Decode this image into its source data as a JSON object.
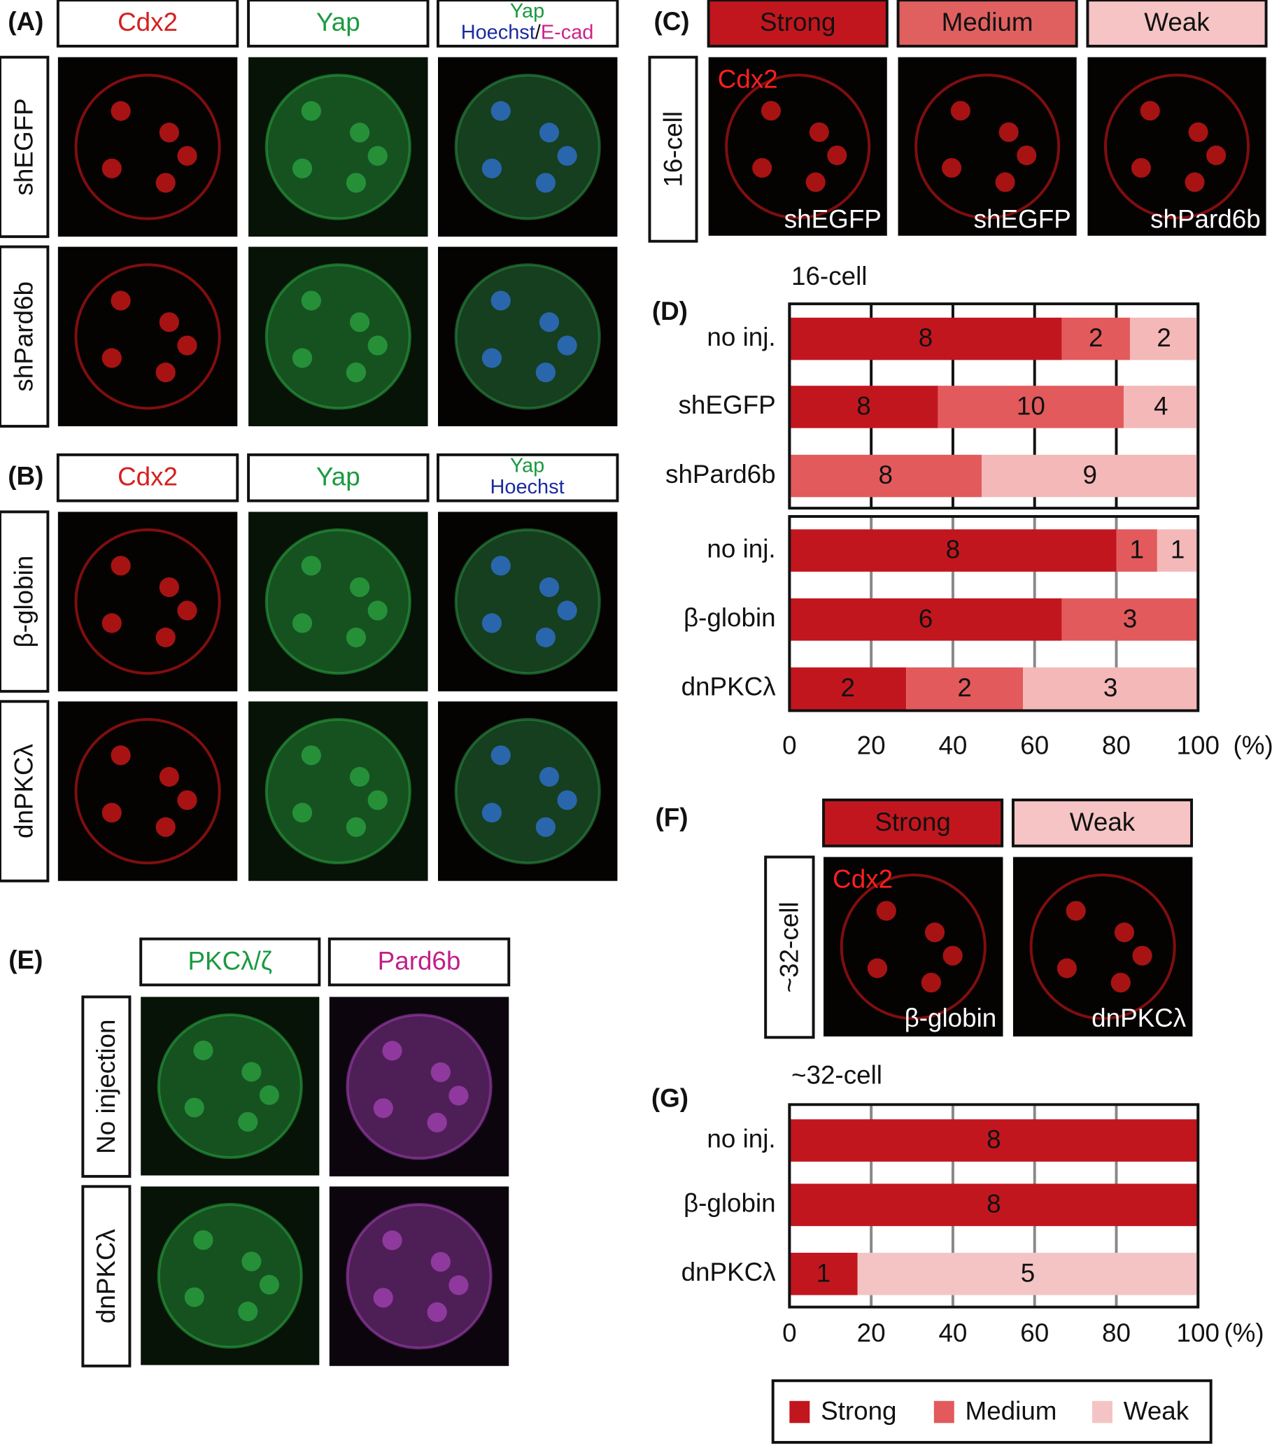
{
  "panels": {
    "A": {
      "label": "(A)",
      "columns": [
        "Cdx2",
        "Yap"
      ],
      "merge_header": [
        "Yap",
        "Hoechst",
        "/",
        "E-cad"
      ],
      "rows": [
        "shEGFP",
        "shPard6b"
      ]
    },
    "B": {
      "label": "(B)",
      "columns": [
        "Cdx2",
        "Yap"
      ],
      "merge_header": [
        "Yap",
        "Hoechst"
      ],
      "rows": [
        "β-globin",
        "dnPKCλ"
      ]
    },
    "C": {
      "label": "(C)",
      "headers": [
        "Strong",
        "Medium",
        "Weak"
      ],
      "row": "16-cell",
      "overlay": "Cdx2",
      "captions": [
        "shEGFP",
        "shEGFP",
        "shPard6b"
      ]
    },
    "E": {
      "label": "(E)",
      "columns": [
        "PKCλ/ζ",
        "Pard6b"
      ],
      "rows": [
        "No injection",
        "dnPKCλ"
      ]
    },
    "F": {
      "label": "(F)",
      "headers": [
        "Strong",
        "Weak"
      ],
      "row": "~32-cell",
      "overlay": "Cdx2",
      "captions": [
        "β-globin",
        "dnPKCλ"
      ]
    }
  },
  "chart_data": [
    {
      "type": "bar",
      "orientation": "horizontal",
      "stacked": "percent",
      "panel_label": "(D)",
      "title": "16-cell",
      "categories": [
        "no inj.",
        "shEGFP",
        "shPard6b",
        "no inj.",
        "β-globin",
        "dnPKCλ"
      ],
      "series": [
        {
          "name": "Strong",
          "color": "#c2161f",
          "values": [
            8,
            8,
            0,
            8,
            6,
            2
          ]
        },
        {
          "name": "Medium",
          "color": "#e25a5c",
          "values": [
            2,
            10,
            8,
            1,
            3,
            2
          ]
        },
        {
          "name": "Weak",
          "color": "#f4b8b8",
          "values": [
            2,
            4,
            9,
            1,
            0,
            3
          ]
        }
      ],
      "xlim": [
        0,
        100
      ],
      "xticks": [
        0,
        20,
        40,
        60,
        80,
        100
      ],
      "xlabel": "(%)",
      "grid": true
    },
    {
      "type": "bar",
      "orientation": "horizontal",
      "stacked": "percent",
      "panel_label": "(G)",
      "title": "~32-cell",
      "categories": [
        "no inj.",
        "β-globin",
        "dnPKCλ"
      ],
      "series": [
        {
          "name": "Strong",
          "color": "#c2161f",
          "values": [
            8,
            8,
            1
          ]
        },
        {
          "name": "Medium",
          "color": "#e25a5c",
          "values": [
            0,
            0,
            0
          ]
        },
        {
          "name": "Weak",
          "color": "#f4c4c4",
          "values": [
            0,
            0,
            5
          ]
        }
      ],
      "xlim": [
        0,
        100
      ],
      "xticks": [
        0,
        20,
        40,
        60,
        80,
        100
      ],
      "xlabel": "(%)",
      "grid": true,
      "legend": "bottom-right"
    }
  ]
}
